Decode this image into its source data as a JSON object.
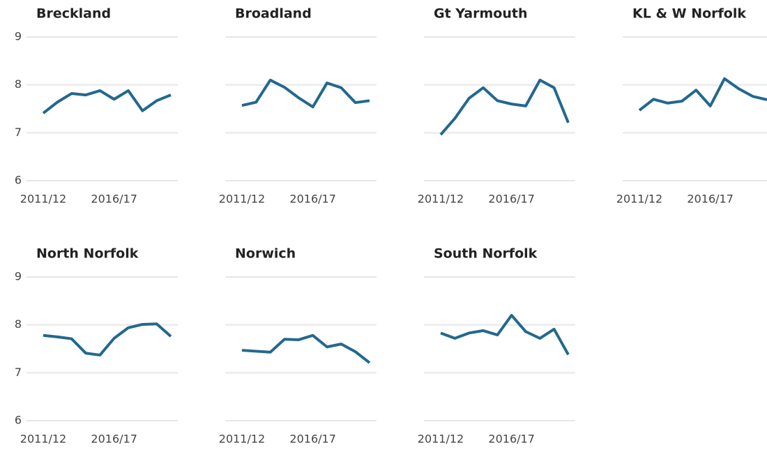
{
  "chart_data": [
    {
      "type": "line",
      "title": "Breckland",
      "color": "#22688f",
      "grid": true,
      "categories": [
        "2011/12",
        null,
        null,
        null,
        null,
        "2016/17",
        null,
        null,
        null,
        null
      ],
      "values": [
        7.41,
        7.64,
        7.82,
        7.79,
        7.88,
        7.7,
        7.88,
        7.46,
        7.67,
        7.79
      ],
      "ylim": [
        6,
        9
      ],
      "yticks": [
        6,
        7,
        8,
        9
      ]
    },
    {
      "type": "line",
      "title": "Broadland",
      "color": "#22688f",
      "grid": true,
      "categories": [
        "2011/12",
        null,
        null,
        null,
        null,
        "2016/17",
        null,
        null,
        null,
        null
      ],
      "values": [
        7.57,
        7.64,
        8.1,
        7.95,
        7.73,
        7.54,
        8.04,
        7.94,
        7.63,
        7.67
      ],
      "ylim": [
        6,
        9
      ],
      "yticks": [
        6,
        7,
        8,
        9
      ]
    },
    {
      "type": "line",
      "title": "Gt Yarmouth",
      "color": "#22688f",
      "grid": true,
      "categories": [
        "2011/12",
        null,
        null,
        null,
        null,
        "2016/17",
        null,
        null,
        null,
        null
      ],
      "values": [
        6.96,
        7.3,
        7.72,
        7.94,
        7.67,
        7.6,
        7.56,
        8.1,
        7.94,
        7.21
      ],
      "ylim": [
        6,
        9
      ],
      "yticks": [
        6,
        7,
        8,
        9
      ]
    },
    {
      "type": "line",
      "title": "KL & W Norfolk",
      "color": "#22688f",
      "grid": true,
      "categories": [
        "2011/12",
        null,
        null,
        null,
        null,
        "2016/17",
        null,
        null,
        null,
        null
      ],
      "values": [
        7.47,
        7.7,
        7.62,
        7.66,
        7.89,
        7.56,
        8.13,
        7.92,
        7.76,
        7.69
      ],
      "ylim": [
        6,
        9
      ],
      "yticks": [
        6,
        7,
        8,
        9
      ]
    },
    {
      "type": "line",
      "title": "North Norfolk",
      "color": "#22688f",
      "grid": true,
      "categories": [
        "2011/12",
        null,
        null,
        null,
        null,
        "2016/17",
        null,
        null,
        null,
        null
      ],
      "values": [
        7.78,
        7.75,
        7.71,
        7.41,
        7.37,
        7.72,
        7.94,
        8.01,
        8.02,
        7.76
      ],
      "ylim": [
        6,
        9
      ],
      "yticks": [
        6,
        7,
        8,
        9
      ]
    },
    {
      "type": "line",
      "title": "Norwich",
      "color": "#22688f",
      "grid": true,
      "categories": [
        "2011/12",
        null,
        null,
        null,
        null,
        "2016/17",
        null,
        null,
        null,
        null
      ],
      "values": [
        7.47,
        7.45,
        7.43,
        7.7,
        7.69,
        7.78,
        7.54,
        7.6,
        7.44,
        7.21
      ],
      "ylim": [
        6,
        9
      ],
      "yticks": [
        6,
        7,
        8,
        9
      ]
    },
    {
      "type": "line",
      "title": "South Norfolk",
      "color": "#22688f",
      "grid": true,
      "categories": [
        "2011/12",
        null,
        null,
        null,
        null,
        "2016/17",
        null,
        null,
        null,
        null
      ],
      "values": [
        7.83,
        7.72,
        7.83,
        7.88,
        7.79,
        8.2,
        7.86,
        7.72,
        7.91,
        7.38
      ],
      "ylim": [
        6,
        9
      ],
      "yticks": [
        6,
        7,
        8,
        9
      ]
    }
  ]
}
